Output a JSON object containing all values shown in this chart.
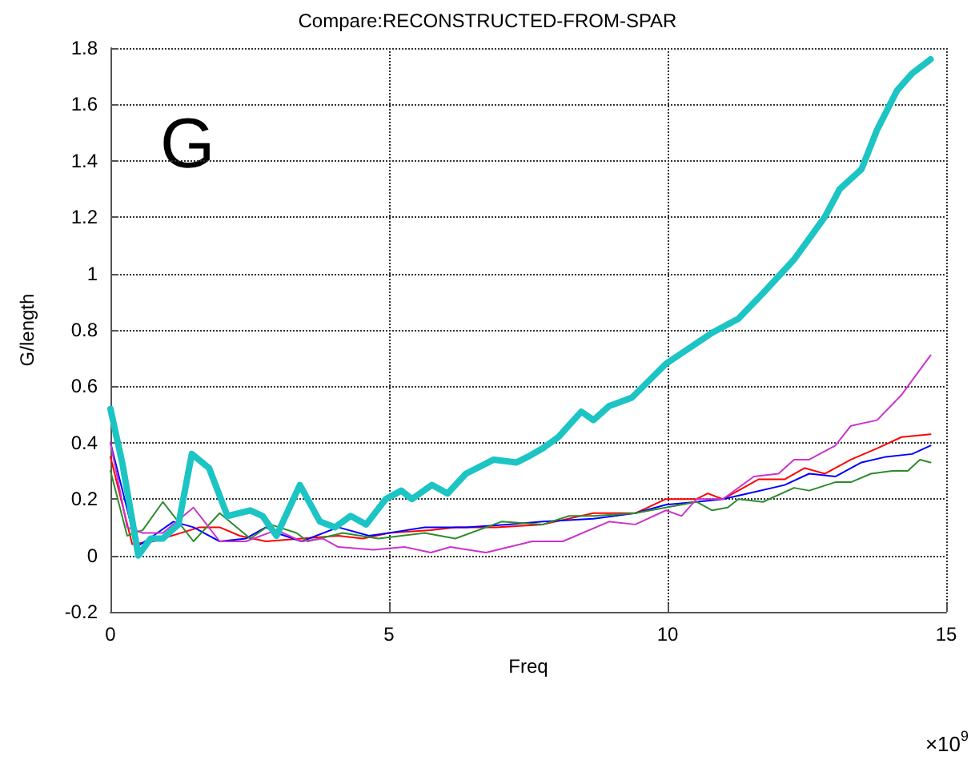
{
  "chart_data": {
    "type": "line",
    "title": "Compare:RECONSTRUCTED-FROM-SPAR",
    "xlabel": "Freq",
    "ylabel": "G/length",
    "xlim": [
      0,
      15
    ],
    "xticks": [
      0,
      5,
      10,
      15
    ],
    "ylim": [
      -0.2,
      1.8
    ],
    "yticks": [
      -0.2,
      0,
      0.2,
      0.4,
      0.6,
      0.8,
      1,
      1.2,
      1.4,
      1.6,
      1.8
    ],
    "grid": true,
    "marker": "none",
    "line_style": "solid",
    "annotations": [
      "G",
      "×10$^{9}$"
    ],
    "series": [
      {
        "color": "#ff0000",
        "x": [
          0,
          0.39,
          0.77,
          1.6,
          1.96,
          2.32,
          2.79,
          3.43,
          4.09,
          4.53,
          5.0,
          5.75,
          6.19,
          6.93,
          7.76,
          8.67,
          9.42,
          9.97,
          10.52,
          10.72,
          10.99,
          11.27,
          11.63,
          12.1,
          12.46,
          12.82,
          13.29,
          13.76,
          14.2,
          14.72
        ],
        "values": [
          0.35,
          0.04,
          0.05,
          0.1,
          0.1,
          0.07,
          0.05,
          0.06,
          0.07,
          0.06,
          0.08,
          0.09,
          0.1,
          0.1,
          0.11,
          0.15,
          0.15,
          0.2,
          0.2,
          0.22,
          0.2,
          0.23,
          0.27,
          0.27,
          0.31,
          0.29,
          0.34,
          0.38,
          0.42,
          0.43
        ]
      },
      {
        "color": "#0000ff",
        "x": [
          0,
          0.47,
          0.77,
          1.13,
          1.49,
          1.96,
          2.43,
          2.79,
          2.98,
          3.43,
          4.09,
          4.64,
          5.0,
          5.64,
          6.38,
          7.13,
          7.76,
          8.67,
          9.42,
          9.97,
          10.52,
          10.99,
          11.44,
          12.1,
          12.54,
          13.01,
          13.48,
          13.92,
          14.39,
          14.72
        ],
        "values": [
          0.4,
          0.03,
          0.07,
          0.12,
          0.1,
          0.05,
          0.06,
          0.1,
          0.08,
          0.05,
          0.1,
          0.07,
          0.08,
          0.1,
          0.1,
          0.11,
          0.12,
          0.13,
          0.15,
          0.18,
          0.19,
          0.2,
          0.22,
          0.25,
          0.29,
          0.28,
          0.33,
          0.35,
          0.36,
          0.39
        ]
      },
      {
        "color": "#2e8b2e",
        "x": [
          0,
          0.3,
          0.58,
          0.94,
          1.49,
          1.96,
          2.51,
          2.87,
          3.34,
          3.54,
          4.17,
          4.81,
          5.64,
          6.19,
          7.02,
          7.76,
          8.23,
          8.67,
          9.42,
          9.97,
          10.52,
          10.8,
          11.08,
          11.27,
          11.71,
          12.27,
          12.54,
          13.01,
          13.29,
          13.65,
          14.03,
          14.31,
          14.53,
          14.72
        ],
        "values": [
          0.3,
          0.07,
          0.09,
          0.19,
          0.05,
          0.15,
          0.06,
          0.11,
          0.08,
          0.05,
          0.08,
          0.06,
          0.08,
          0.06,
          0.12,
          0.11,
          0.14,
          0.14,
          0.15,
          0.17,
          0.19,
          0.16,
          0.17,
          0.2,
          0.19,
          0.24,
          0.23,
          0.26,
          0.26,
          0.29,
          0.3,
          0.3,
          0.34,
          0.33
        ]
      },
      {
        "color": "#cc33cc",
        "x": [
          0,
          0.3,
          0.58,
          0.94,
          1.49,
          1.96,
          2.43,
          2.98,
          3.43,
          3.81,
          4.09,
          4.72,
          5.28,
          5.75,
          6.1,
          6.74,
          7.57,
          8.12,
          8.95,
          9.42,
          9.97,
          10.25,
          10.52,
          10.99,
          11.55,
          11.99,
          12.27,
          12.54,
          13.01,
          13.29,
          13.76,
          14.2,
          14.72
        ],
        "values": [
          0.4,
          0.1,
          0.08,
          0.08,
          0.17,
          0.05,
          0.05,
          0.09,
          0.05,
          0.06,
          0.03,
          0.02,
          0.03,
          0.01,
          0.03,
          0.01,
          0.05,
          0.05,
          0.12,
          0.11,
          0.16,
          0.14,
          0.2,
          0.2,
          0.28,
          0.29,
          0.34,
          0.34,
          0.39,
          0.46,
          0.48,
          0.57,
          0.71
        ]
      },
      {
        "color": "#1cc4c4",
        "x": [
          0,
          0.22,
          0.5,
          0.72,
          0.94,
          1.22,
          1.46,
          1.77,
          2.1,
          2.51,
          2.73,
          2.98,
          3.4,
          3.76,
          4.03,
          4.31,
          4.59,
          4.94,
          5.22,
          5.41,
          5.77,
          6.05,
          6.38,
          6.88,
          7.29,
          7.49,
          7.76,
          8.04,
          8.45,
          8.67,
          8.95,
          9.36,
          9.97,
          10.8,
          11.27,
          11.71,
          12.27,
          12.82,
          13.09,
          13.48,
          13.76,
          14.12,
          14.39,
          14.72
        ],
        "values": [
          0.52,
          0.32,
          0.0,
          0.06,
          0.06,
          0.11,
          0.36,
          0.31,
          0.14,
          0.16,
          0.14,
          0.07,
          0.25,
          0.12,
          0.1,
          0.14,
          0.11,
          0.2,
          0.23,
          0.2,
          0.25,
          0.22,
          0.29,
          0.34,
          0.33,
          0.35,
          0.38,
          0.42,
          0.51,
          0.48,
          0.53,
          0.56,
          0.68,
          0.79,
          0.84,
          0.93,
          1.05,
          1.2,
          1.3,
          1.37,
          1.51,
          1.65,
          1.71,
          1.76
        ]
      }
    ]
  }
}
